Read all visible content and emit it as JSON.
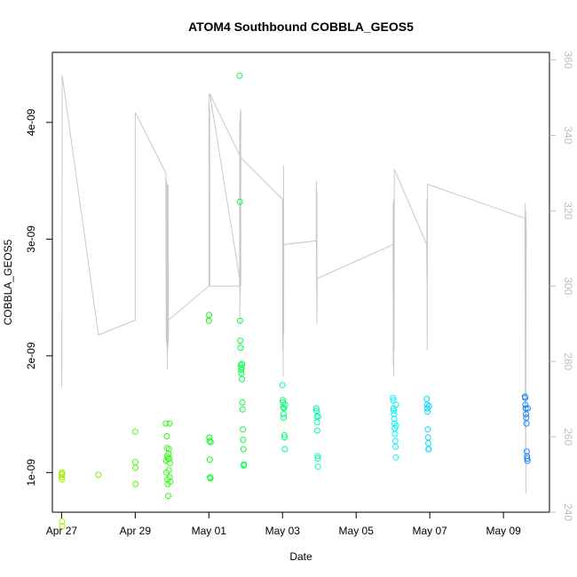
{
  "chart_data": {
    "type": "scatter",
    "title": "ATOM4 Southbound COBBLA_GEOS5",
    "xlabel": "Date",
    "ylabel": "COBBLA_GEOS5",
    "xlim": [
      "2016-04-26 18:00",
      "2016-05-10 06:00"
    ],
    "ylim": [
      6.6e-10,
      4.6e-09
    ],
    "y2lim": [
      240,
      362
    ],
    "xticks": [
      {
        "label": "Apr 27",
        "date": "2016-04-27"
      },
      {
        "label": "Apr 29",
        "date": "2016-04-29"
      },
      {
        "label": "May 01",
        "date": "2016-05-01"
      },
      {
        "label": "May 03",
        "date": "2016-05-03"
      },
      {
        "label": "May 05",
        "date": "2016-05-05"
      },
      {
        "label": "May 07",
        "date": "2016-05-07"
      },
      {
        "label": "May 09",
        "date": "2016-05-09"
      }
    ],
    "yticks": [
      {
        "label": "1e-09",
        "value": 1e-09
      },
      {
        "label": "2e-09",
        "value": 2e-09
      },
      {
        "label": "3e-09",
        "value": 3e-09
      },
      {
        "label": "4e-09",
        "value": 4e-09
      }
    ],
    "y2ticks": [
      240,
      260,
      280,
      300,
      320,
      340,
      360
    ],
    "colors": {
      "secondary_line": "#c8c8c8",
      "secondary_axis": "#bdbdbd",
      "point_gradient": [
        "#a8f000",
        "#00ff20",
        "#00ffff",
        "#2070ff"
      ]
    },
    "scatter_series": [
      {
        "points": [
          [
            "2016-04-27 00:00",
            9.8e-10
          ],
          [
            "2016-04-27 00:05",
            9.6e-10
          ],
          [
            "2016-04-27 00:10",
            1e-09
          ],
          [
            "2016-04-27 00:15",
            9.4e-10
          ],
          [
            "2016-04-27 00:20",
            5.8e-10
          ],
          [
            "2016-04-27 00:25",
            5.4e-10
          ],
          [
            "2016-04-27 00:30",
            9.9e-10
          ],
          [
            "2016-04-28 00:00",
            9.8e-10
          ],
          [
            "2016-04-29 00:00",
            1.35e-09
          ],
          [
            "2016-04-29 00:05",
            1.09e-09
          ],
          [
            "2016-04-29 00:10",
            1.04e-09
          ],
          [
            "2016-04-29 00:15",
            9e-10
          ],
          [
            "2016-04-29 20:00",
            1.42e-09
          ],
          [
            "2016-04-29 20:10",
            1.1e-09
          ],
          [
            "2016-04-29 20:20",
            1e-09
          ],
          [
            "2016-04-29 20:30",
            1.31e-09
          ],
          [
            "2016-04-29 20:40",
            1.21e-09
          ],
          [
            "2016-04-29 20:50",
            1.14e-09
          ],
          [
            "2016-04-29 21:00",
            9.4e-10
          ],
          [
            "2016-04-29 21:10",
            9e-10
          ],
          [
            "2016-04-29 21:20",
            1.12e-09
          ],
          [
            "2016-04-29 21:30",
            8e-10
          ],
          [
            "2016-04-29 21:40",
            1.16e-09
          ],
          [
            "2016-04-29 21:50",
            1.02e-09
          ],
          [
            "2016-04-29 22:00",
            1.2e-09
          ],
          [
            "2016-04-29 22:10",
            1.12e-09
          ],
          [
            "2016-04-29 22:20",
            1.42e-09
          ],
          [
            "2016-04-29 22:30",
            9.6e-10
          ],
          [
            "2016-04-29 22:40",
            1.08e-09
          ],
          [
            "2016-04-29 22:50",
            9.2e-10
          ]
        ]
      },
      {
        "points": [
          [
            "2016-05-01 00:00",
            2.3e-09
          ],
          [
            "2016-05-01 00:10",
            2.35e-09
          ],
          [
            "2016-05-01 00:20",
            1.3e-09
          ],
          [
            "2016-05-01 00:30",
            1.27e-09
          ],
          [
            "2016-05-01 00:40",
            1.11e-09
          ],
          [
            "2016-05-01 00:50",
            9.6e-10
          ],
          [
            "2016-05-01 01:00",
            9.5e-10
          ],
          [
            "2016-05-01 01:10",
            1.26e-09
          ],
          [
            "2016-05-01 20:00",
            4.4e-09
          ],
          [
            "2016-05-01 20:10",
            3.32e-09
          ],
          [
            "2016-05-01 20:20",
            2.3e-09
          ],
          [
            "2016-05-01 20:30",
            2.13e-09
          ],
          [
            "2016-05-01 20:40",
            2.07e-09
          ],
          [
            "2016-05-01 20:50",
            1.92e-09
          ],
          [
            "2016-05-01 21:00",
            1.88e-09
          ],
          [
            "2016-05-01 21:10",
            1.85e-09
          ],
          [
            "2016-05-01 21:20",
            1.9e-09
          ],
          [
            "2016-05-01 21:30",
            1.8e-09
          ],
          [
            "2016-05-01 21:40",
            1.93e-09
          ],
          [
            "2016-05-01 21:50",
            1.6e-09
          ],
          [
            "2016-05-01 22:00",
            1.54e-09
          ],
          [
            "2016-05-01 22:10",
            1.37e-09
          ],
          [
            "2016-05-01 22:20",
            1.28e-09
          ],
          [
            "2016-05-01 22:30",
            1.2e-09
          ],
          [
            "2016-05-01 22:40",
            1.06e-09
          ],
          [
            "2016-05-01 22:50",
            1.07e-09
          ]
        ]
      },
      {
        "points": [
          [
            "2016-05-03 00:00",
            1.75e-09
          ],
          [
            "2016-05-03 00:10",
            1.62e-09
          ],
          [
            "2016-05-03 00:20",
            1.6e-09
          ],
          [
            "2016-05-03 00:30",
            1.56e-09
          ],
          [
            "2016-05-03 00:40",
            1.5e-09
          ],
          [
            "2016-05-03 00:50",
            1.47e-09
          ],
          [
            "2016-05-03 01:00",
            1.55e-09
          ],
          [
            "2016-05-03 01:10",
            1.32e-09
          ],
          [
            "2016-05-03 01:20",
            1.3e-09
          ],
          [
            "2016-05-03 01:30",
            1.2e-09
          ],
          [
            "2016-05-03 01:40",
            1.58e-09
          ],
          [
            "2016-05-03 22:00",
            1.55e-09
          ],
          [
            "2016-05-03 22:10",
            1.53e-09
          ],
          [
            "2016-05-03 22:20",
            1.48e-09
          ],
          [
            "2016-05-03 22:30",
            1.43e-09
          ],
          [
            "2016-05-03 22:40",
            1.36e-09
          ],
          [
            "2016-05-03 22:50",
            1.14e-09
          ],
          [
            "2016-05-03 23:00",
            1.12e-09
          ],
          [
            "2016-05-03 23:10",
            1.05e-09
          ],
          [
            "2016-05-03 23:20",
            1.48e-09
          ]
        ]
      },
      {
        "points": [
          [
            "2016-05-06 00:00",
            1.64e-09
          ],
          [
            "2016-05-06 00:10",
            1.62e-09
          ],
          [
            "2016-05-06 00:20",
            1.55e-09
          ],
          [
            "2016-05-06 00:30",
            1.53e-09
          ],
          [
            "2016-05-06 00:40",
            1.5e-09
          ],
          [
            "2016-05-06 00:50",
            1.46e-09
          ],
          [
            "2016-05-06 01:00",
            1.42e-09
          ],
          [
            "2016-05-06 01:10",
            1.38e-09
          ],
          [
            "2016-05-06 01:20",
            1.33e-09
          ],
          [
            "2016-05-06 01:30",
            1.27e-09
          ],
          [
            "2016-05-06 01:40",
            1.22e-09
          ],
          [
            "2016-05-06 01:50",
            1.13e-09
          ],
          [
            "2016-05-06 02:00",
            1.58e-09
          ],
          [
            "2016-05-06 02:10",
            1.4e-09
          ],
          [
            "2016-05-06 22:00",
            1.63e-09
          ],
          [
            "2016-05-06 22:10",
            1.58e-09
          ],
          [
            "2016-05-06 22:20",
            1.55e-09
          ],
          [
            "2016-05-06 22:30",
            1.52e-09
          ],
          [
            "2016-05-06 22:40",
            1.37e-09
          ],
          [
            "2016-05-06 22:50",
            1.3e-09
          ],
          [
            "2016-05-06 23:00",
            1.25e-09
          ],
          [
            "2016-05-06 23:10",
            1.2e-09
          ],
          [
            "2016-05-06 23:20",
            1.2e-09
          ],
          [
            "2016-05-06 23:30",
            1.57e-09
          ]
        ]
      },
      {
        "points": [
          [
            "2016-05-09 14:00",
            1.65e-09
          ],
          [
            "2016-05-09 14:10",
            1.64e-09
          ],
          [
            "2016-05-09 14:20",
            1.58e-09
          ],
          [
            "2016-05-09 14:30",
            1.55e-09
          ],
          [
            "2016-05-09 14:40",
            1.5e-09
          ],
          [
            "2016-05-09 14:50",
            1.47e-09
          ],
          [
            "2016-05-09 15:00",
            1.42e-09
          ],
          [
            "2016-05-09 15:10",
            1.18e-09
          ],
          [
            "2016-05-09 15:20",
            1.14e-09
          ],
          [
            "2016-05-09 15:30",
            1.12e-09
          ],
          [
            "2016-05-09 15:40",
            1.1e-09
          ],
          [
            "2016-05-09 15:50",
            1.55e-09
          ]
        ]
      }
    ],
    "secondary_series": {
      "axis": "right",
      "points": [
        [
          "2016-04-27 00:00",
          273
        ],
        [
          "2016-04-27 00:08",
          292
        ],
        [
          "2016-04-27 00:15",
          278
        ],
        [
          "2016-04-27 00:22",
          356
        ],
        [
          "2016-04-28 00:00",
          287
        ],
        [
          "2016-04-29 00:00",
          291
        ],
        [
          "2016-04-29 00:02",
          346
        ],
        [
          "2016-04-29 20:00",
          330
        ],
        [
          "2016-04-29 20:15",
          285
        ],
        [
          "2016-04-29 20:25",
          328
        ],
        [
          "2016-04-29 20:35",
          284
        ],
        [
          "2016-04-29 20:45",
          327
        ],
        [
          "2016-04-29 20:55",
          278
        ],
        [
          "2016-04-29 21:05",
          325
        ],
        [
          "2016-04-29 21:15",
          283
        ],
        [
          "2016-04-29 21:25",
          327
        ],
        [
          "2016-04-29 21:35",
          285
        ],
        [
          "2016-04-29 21:45",
          291
        ],
        [
          "2016-05-01 00:00",
          300
        ],
        [
          "2016-05-01 00:04",
          348
        ],
        [
          "2016-05-01 00:08",
          308
        ],
        [
          "2016-05-01 00:12",
          351
        ],
        [
          "2016-05-01 00:20",
          302
        ],
        [
          "2016-05-01 00:28",
          347
        ],
        [
          "2016-05-01 00:36",
          300
        ],
        [
          "2016-05-01 20:00",
          300
        ],
        [
          "2016-05-01 20:05",
          344
        ],
        [
          "2016-05-01 20:10",
          290
        ],
        [
          "2016-05-01 20:15",
          340
        ],
        [
          "2016-05-01 20:20",
          296
        ],
        [
          "2016-05-01 20:25",
          346
        ],
        [
          "2016-05-01 20:30",
          298
        ],
        [
          "2016-05-01 20:35",
          342
        ],
        [
          "2016-05-01 20:40",
          303
        ],
        [
          "2016-05-01 20:45",
          347
        ],
        [
          "2016-05-01 20:50",
          300
        ],
        [
          "2016-05-01 00:40",
          351
        ],
        [
          "2016-05-01 20:55",
          334
        ],
        [
          "2016-05-01 21:00",
          334
        ],
        [
          "2016-05-03 00:00",
          323
        ],
        [
          "2016-05-03 00:05",
          283
        ],
        [
          "2016-05-03 00:10",
          318
        ],
        [
          "2016-05-03 00:15",
          292
        ],
        [
          "2016-05-03 00:20",
          312
        ],
        [
          "2016-05-03 00:25",
          276
        ],
        [
          "2016-05-03 00:30",
          320
        ],
        [
          "2016-05-03 00:35",
          290
        ],
        [
          "2016-05-03 00:40",
          332
        ],
        [
          "2016-05-03 00:45",
          287
        ],
        [
          "2016-05-03 00:50",
          311
        ],
        [
          "2016-05-03 22:00",
          312
        ],
        [
          "2016-05-03 22:05",
          328
        ],
        [
          "2016-05-03 22:10",
          299
        ],
        [
          "2016-05-03 22:15",
          326
        ],
        [
          "2016-05-03 22:20",
          290
        ],
        [
          "2016-05-03 22:25",
          325
        ],
        [
          "2016-05-03 22:30",
          293
        ],
        [
          "2016-05-03 22:35",
          302
        ],
        [
          "2016-05-06 00:00",
          311
        ],
        [
          "2016-05-06 00:04",
          298
        ],
        [
          "2016-05-06 00:08",
          322
        ],
        [
          "2016-05-06 00:12",
          279
        ],
        [
          "2016-05-06 00:16",
          318
        ],
        [
          "2016-05-06 00:20",
          285
        ],
        [
          "2016-05-06 00:24",
          323
        ],
        [
          "2016-05-06 00:28",
          276
        ],
        [
          "2016-05-06 00:32",
          318
        ],
        [
          "2016-05-06 00:36",
          292
        ],
        [
          "2016-05-06 00:40",
          320
        ],
        [
          "2016-05-06 00:44",
          283
        ],
        [
          "2016-05-06 00:48",
          301
        ],
        [
          "2016-05-06 00:52",
          331
        ],
        [
          "2016-05-06 22:00",
          311
        ],
        [
          "2016-05-06 22:05",
          303
        ],
        [
          "2016-05-06 22:10",
          323
        ],
        [
          "2016-05-06 22:15",
          283
        ],
        [
          "2016-05-06 22:20",
          319
        ],
        [
          "2016-05-06 22:25",
          300
        ],
        [
          "2016-05-06 22:30",
          324
        ],
        [
          "2016-05-06 22:35",
          327
        ],
        [
          "2016-05-09 14:00",
          318
        ],
        [
          "2016-05-09 14:05",
          298
        ],
        [
          "2016-05-09 14:10",
          322
        ],
        [
          "2016-05-09 14:15",
          262
        ],
        [
          "2016-05-09 14:20",
          318
        ],
        [
          "2016-05-09 14:25",
          256
        ],
        [
          "2016-05-09 14:30",
          320
        ],
        [
          "2016-05-09 14:35",
          245
        ],
        [
          "2016-05-09 14:40",
          318
        ],
        [
          "2016-05-09 14:45",
          288
        ],
        [
          "2016-05-09 14:50",
          316
        ]
      ]
    }
  }
}
